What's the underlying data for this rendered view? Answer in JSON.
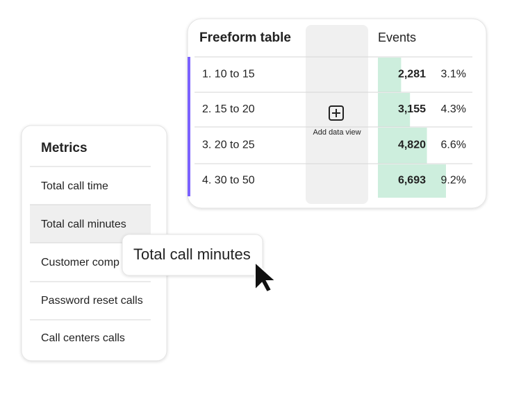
{
  "table": {
    "title": "Freeform table",
    "add_data_view": "Add data view",
    "column": "Events",
    "rows": [
      {
        "label": "1.  10 to 15",
        "events": {
          "value": 2281,
          "label": "2,281"
        },
        "percent": "3.1%"
      },
      {
        "label": "2.  15 to 20",
        "events": {
          "value": 3155,
          "label": "3,155"
        },
        "percent": "4.3%"
      },
      {
        "label": "3.  20 to 25",
        "events": {
          "value": 4820,
          "label": "4,820"
        },
        "percent": "6.6%"
      },
      {
        "label": "4. 30 to 50",
        "events": {
          "value": 6693,
          "label": "6,693"
        },
        "percent": "9.2%"
      }
    ]
  },
  "metrics": {
    "title": "Metrics",
    "items": [
      "Total call time",
      "Total call  minutes",
      "Customer comp",
      "Password reset calls",
      "Call centers calls"
    ]
  },
  "tooltip": "Total call minutes"
}
